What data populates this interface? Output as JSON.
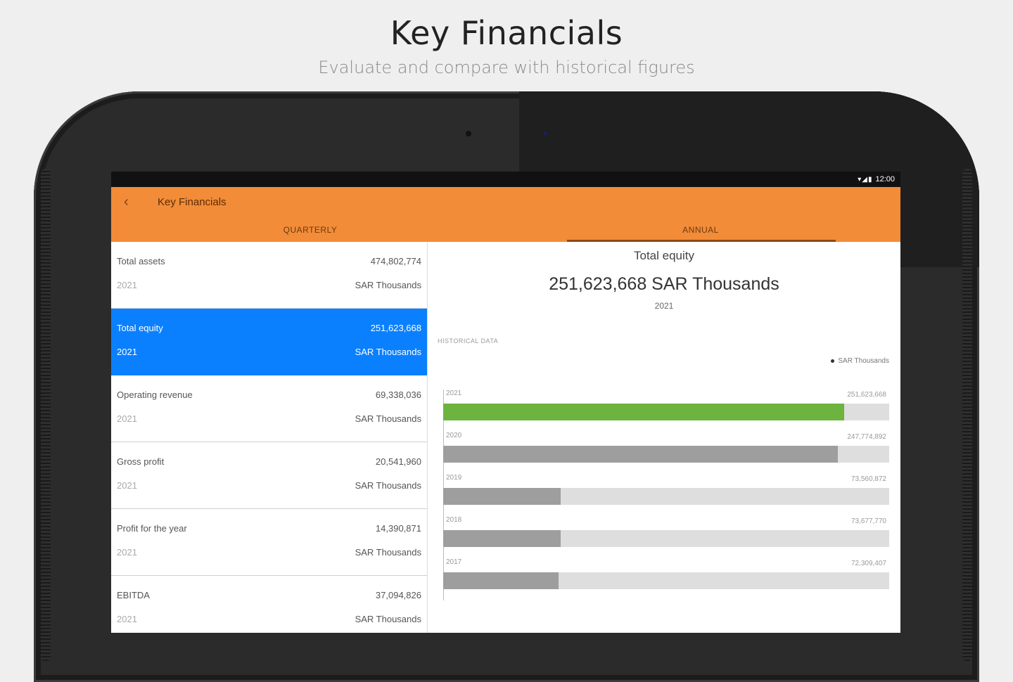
{
  "promo": {
    "title": "Key Financials",
    "subtitle": "Evaluate and compare with historical figures"
  },
  "status": {
    "icons": "▾◢▮",
    "time": "12:00"
  },
  "appbar": {
    "title": "Key Financials",
    "back_icon": "chevron-left-icon",
    "tabs": [
      {
        "label": "QUARTERLY",
        "selected": false
      },
      {
        "label": "ANNUAL",
        "selected": true
      }
    ]
  },
  "list": [
    {
      "label": "Total assets",
      "value": "474,802,774",
      "year": "2021",
      "unit": "SAR Thousands",
      "selected": false
    },
    {
      "label": "Total equity",
      "value": "251,623,668",
      "year": "2021",
      "unit": "SAR Thousands",
      "selected": true
    },
    {
      "label": "Operating revenue",
      "value": "69,338,036",
      "year": "2021",
      "unit": "SAR Thousands",
      "selected": false
    },
    {
      "label": "Gross profit",
      "value": "20,541,960",
      "year": "2021",
      "unit": "SAR Thousands",
      "selected": false
    },
    {
      "label": "Profit for the year",
      "value": "14,390,871",
      "year": "2021",
      "unit": "SAR Thousands",
      "selected": false
    },
    {
      "label": "EBITDA",
      "value": "37,094,826",
      "year": "2021",
      "unit": "SAR Thousands",
      "selected": false
    }
  ],
  "detail": {
    "title": "Total equity",
    "value": "251,623,668 SAR Thousands",
    "year": "2021",
    "historical_label": "HISTORICAL DATA",
    "legend": "SAR Thousands"
  },
  "chart_data": {
    "type": "bar",
    "orientation": "horizontal",
    "categories": [
      "2021",
      "2020",
      "2019",
      "2018",
      "2017"
    ],
    "values": [
      251623668,
      247774892,
      73560872,
      73677770,
      72309407
    ],
    "value_labels": [
      "251,623,668",
      "247,774,892",
      "73,560,872",
      "73,677,770",
      "72,309,407"
    ],
    "series": [
      {
        "name": "SAR Thousands",
        "values": [
          251623668,
          247774892,
          73560872,
          73677770,
          72309407
        ]
      }
    ],
    "xlim": [
      0,
      280000000
    ],
    "highlight_category": "2021",
    "colors": {
      "highlight": "#6db33f",
      "bar": "#9e9e9e",
      "track": "#dedede"
    },
    "legend_position": "top-right",
    "grid": false
  },
  "colors": {
    "accent": "#f28c38",
    "selected_row": "#0a80ff"
  }
}
